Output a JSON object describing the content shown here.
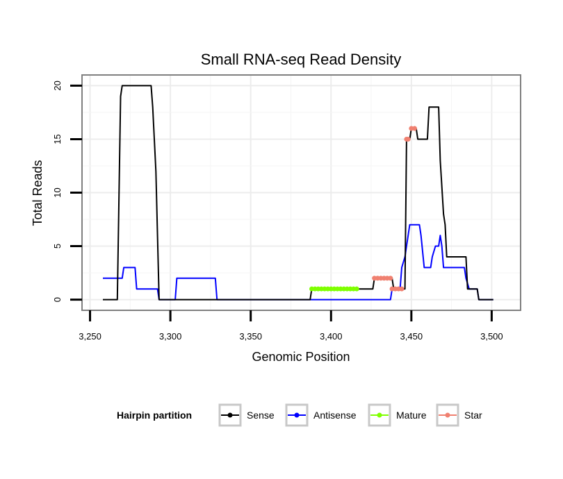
{
  "chart_data": {
    "type": "line",
    "title": "Small RNA-seq Read Density",
    "xlabel": "Genomic Position",
    "ylabel": "Total Reads",
    "xlim": [
      3245,
      3518
    ],
    "ylim": [
      -1,
      21
    ],
    "x_ticks": [
      3250,
      3300,
      3350,
      3400,
      3450,
      3500
    ],
    "x_tick_labels": [
      "3,250",
      "3,300",
      "3,350",
      "3,400",
      "3,450",
      "3,500"
    ],
    "y_ticks": [
      0,
      5,
      10,
      15,
      20
    ],
    "y_tick_labels": [
      "0",
      "5",
      "10",
      "15",
      "20"
    ],
    "grid": true,
    "legend": {
      "title": "Hairpin partition",
      "position": "bottom",
      "entries": [
        "Sense",
        "Antisense",
        "Mature",
        "Star"
      ]
    },
    "series": [
      {
        "name": "Sense",
        "color": "#000000",
        "points": [
          [
            3258,
            0
          ],
          [
            3267,
            0
          ],
          [
            3269,
            19
          ],
          [
            3270,
            20
          ],
          [
            3288,
            20
          ],
          [
            3289,
            18
          ],
          [
            3291,
            12
          ],
          [
            3293,
            0
          ],
          [
            3387,
            0
          ],
          [
            3388,
            1
          ],
          [
            3416,
            1
          ],
          [
            3426,
            1
          ],
          [
            3427,
            2
          ],
          [
            3438,
            2
          ],
          [
            3439,
            1
          ],
          [
            3446,
            1
          ],
          [
            3447,
            15
          ],
          [
            3449,
            15
          ],
          [
            3450,
            16
          ],
          [
            3453,
            16
          ],
          [
            3454,
            15
          ],
          [
            3460,
            15
          ],
          [
            3461,
            18
          ],
          [
            3467,
            18
          ],
          [
            3468,
            13
          ],
          [
            3470,
            8
          ],
          [
            3471,
            7
          ],
          [
            3472,
            4
          ],
          [
            3483,
            4
          ],
          [
            3484,
            4
          ],
          [
            3485,
            1
          ],
          [
            3491,
            1
          ],
          [
            3492,
            0
          ],
          [
            3501,
            0
          ]
        ]
      },
      {
        "name": "Antisense",
        "color": "#0000ff",
        "points": [
          [
            3258,
            2
          ],
          [
            3270,
            2
          ],
          [
            3271,
            3
          ],
          [
            3278,
            3
          ],
          [
            3279,
            1
          ],
          [
            3292,
            1
          ],
          [
            3293,
            0
          ],
          [
            3303,
            0
          ],
          [
            3304,
            2
          ],
          [
            3328,
            2
          ],
          [
            3329,
            0
          ],
          [
            3437,
            0
          ],
          [
            3438,
            1
          ],
          [
            3443,
            1
          ],
          [
            3444,
            3
          ],
          [
            3446,
            4
          ],
          [
            3447,
            5
          ],
          [
            3448,
            6
          ],
          [
            3449,
            7
          ],
          [
            3455,
            7
          ],
          [
            3456,
            6
          ],
          [
            3458,
            3
          ],
          [
            3462,
            3
          ],
          [
            3463,
            4
          ],
          [
            3465,
            5
          ],
          [
            3467,
            5
          ],
          [
            3468,
            6
          ],
          [
            3469,
            5
          ],
          [
            3470,
            3
          ],
          [
            3483,
            3
          ],
          [
            3484,
            2
          ],
          [
            3486,
            1
          ],
          [
            3491,
            1
          ],
          [
            3492,
            0
          ],
          [
            3501,
            0
          ]
        ]
      },
      {
        "name": "Mature",
        "color": "#7fff00",
        "points": [
          [
            3388,
            1
          ],
          [
            3390,
            1
          ],
          [
            3392,
            1
          ],
          [
            3394,
            1
          ],
          [
            3396,
            1
          ],
          [
            3398,
            1
          ],
          [
            3400,
            1
          ],
          [
            3402,
            1
          ],
          [
            3404,
            1
          ],
          [
            3406,
            1
          ],
          [
            3408,
            1
          ],
          [
            3410,
            1
          ],
          [
            3412,
            1
          ],
          [
            3414,
            1
          ],
          [
            3416,
            1
          ]
        ]
      },
      {
        "name": "Star",
        "color": "#f08070",
        "points": [
          [
            3427,
            2
          ],
          [
            3429,
            2
          ],
          [
            3431,
            2
          ],
          [
            3433,
            2
          ],
          [
            3435,
            2
          ],
          [
            3437,
            2
          ],
          [
            3438,
            1
          ],
          [
            3440,
            1
          ],
          [
            3442,
            1
          ],
          [
            3444,
            1
          ],
          [
            3447,
            15
          ],
          [
            3448,
            15
          ],
          [
            3450,
            16
          ],
          [
            3452,
            16
          ]
        ]
      }
    ]
  }
}
